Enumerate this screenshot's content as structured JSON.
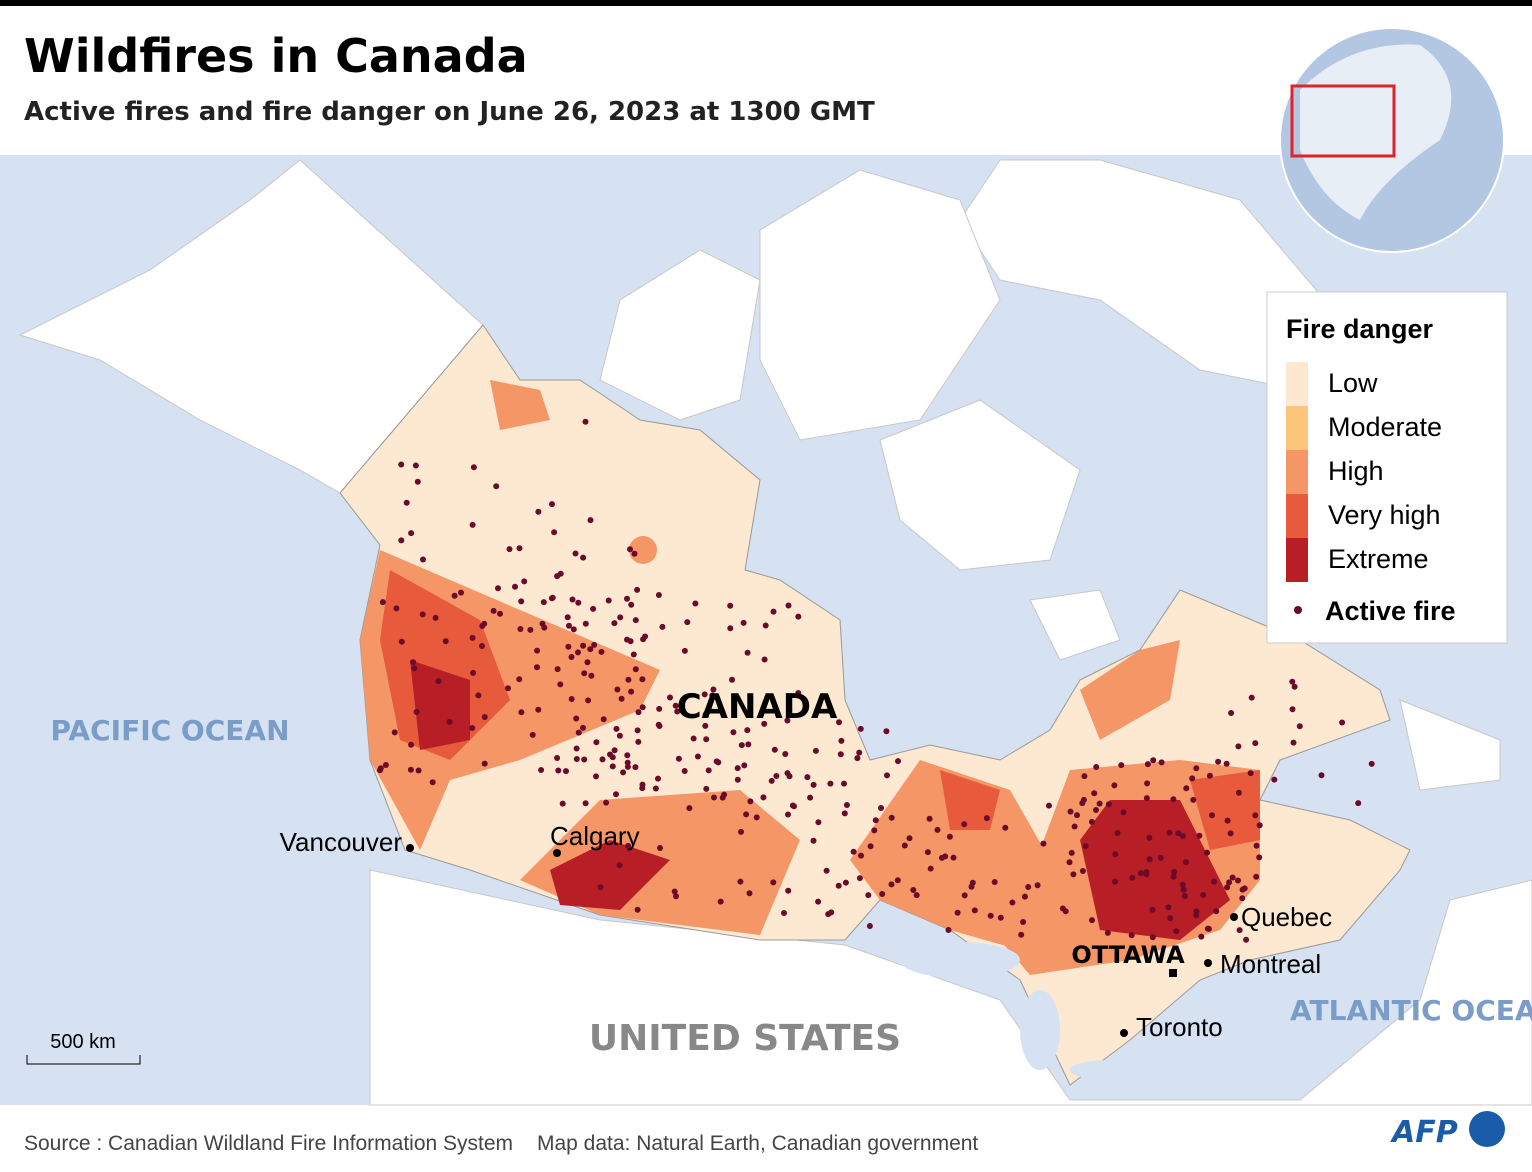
{
  "header": {
    "title": "Wildfires in Canada",
    "subtitle": "Active fires and fire danger on June 26, 2023 at 1300 GMT"
  },
  "legend": {
    "title": "Fire danger",
    "items": [
      {
        "label": "Low",
        "color": "#fde9d1"
      },
      {
        "label": "Moderate",
        "color": "#fcc57a"
      },
      {
        "label": "High",
        "color": "#f59666"
      },
      {
        "label": "Very high",
        "color": "#e75a3c"
      },
      {
        "label": "Extreme",
        "color": "#b71e25"
      }
    ],
    "active_fire": "Active fire",
    "active_fire_color": "#6b0a2a"
  },
  "map": {
    "oceans": [
      "PACIFIC OCEAN",
      "ATLANTIC OCEAN"
    ],
    "countries": [
      "CANADA",
      "UNITED STATES"
    ],
    "capital": "OTTAWA",
    "cities": [
      "Vancouver",
      "Calgary",
      "Quebec",
      "Montreal",
      "Toronto"
    ],
    "scale": "500 km"
  },
  "footer": {
    "source": "Source : Canadian Wildland Fire Information System",
    "map_data": "Map data: Natural Earth, Canadian government",
    "logo": "AFP"
  }
}
